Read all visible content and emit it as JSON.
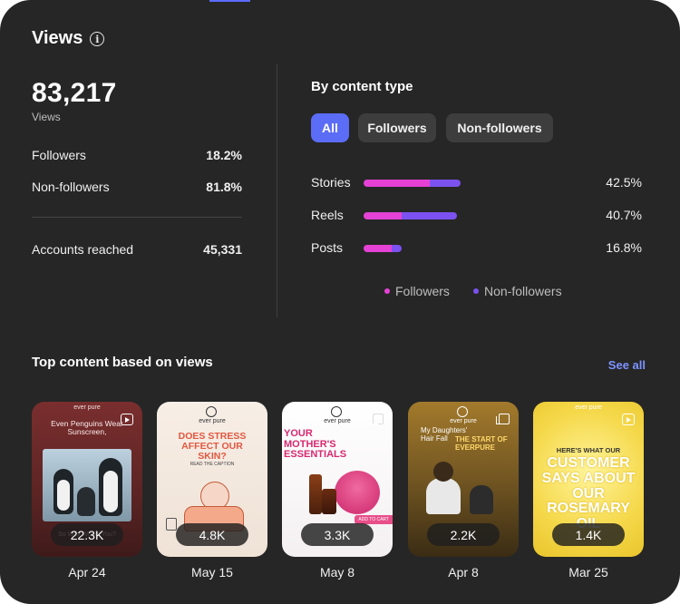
{
  "header": {
    "title": "Views"
  },
  "totals": {
    "value": "83,217",
    "label": "Views"
  },
  "split": [
    {
      "label": "Followers",
      "value": "18.2%"
    },
    {
      "label": "Non-followers",
      "value": "81.8%"
    }
  ],
  "reach": {
    "label": "Accounts reached",
    "value": "45,331"
  },
  "content_type": {
    "title": "By content type",
    "filters": [
      "All",
      "Followers",
      "Non-followers"
    ],
    "active_filter": "All",
    "rows": [
      {
        "label": "Stories",
        "pct": "42.5%",
        "total": 0.425,
        "followers": 0.288
      },
      {
        "label": "Reels",
        "pct": "40.7%",
        "total": 0.407,
        "followers": 0.165
      },
      {
        "label": "Posts",
        "pct": "16.8%",
        "total": 0.168,
        "followers": 0.122
      }
    ],
    "legend": [
      {
        "label": "Followers",
        "color": "#e541d5"
      },
      {
        "label": "Non-followers",
        "color": "#7b52f0"
      }
    ]
  },
  "top_content": {
    "title": "Top content based on views",
    "see_all": "See all",
    "items": [
      {
        "views": "22.3K",
        "date": "Apr 24",
        "brand": "ever pure",
        "text": "Even Penguins Wear Sunscreen,",
        "caption": "So Why Would You?"
      },
      {
        "views": "4.8K",
        "date": "May 15",
        "brand": "ever pure",
        "text": "DOES STRESS AFFECT OUR SKIN?",
        "caption": "READ THE CAPTION"
      },
      {
        "views": "3.3K",
        "date": "May 8",
        "brand": "ever pure",
        "text": "YOUR MOTHER'S ESSENTIALS",
        "caption": "ADD TO CART"
      },
      {
        "views": "2.2K",
        "date": "Apr 8",
        "brand": "ever pure",
        "text": "My Daughters' Hair Fall",
        "caption": "THE START OF EVERPURE"
      },
      {
        "views": "1.4K",
        "date": "Mar 25",
        "brand": "ever pure",
        "text": "HERE'S WHAT OUR",
        "caption": "CUSTOMER SAYS ABOUT OUR ROSEMARY OIL"
      }
    ]
  }
}
